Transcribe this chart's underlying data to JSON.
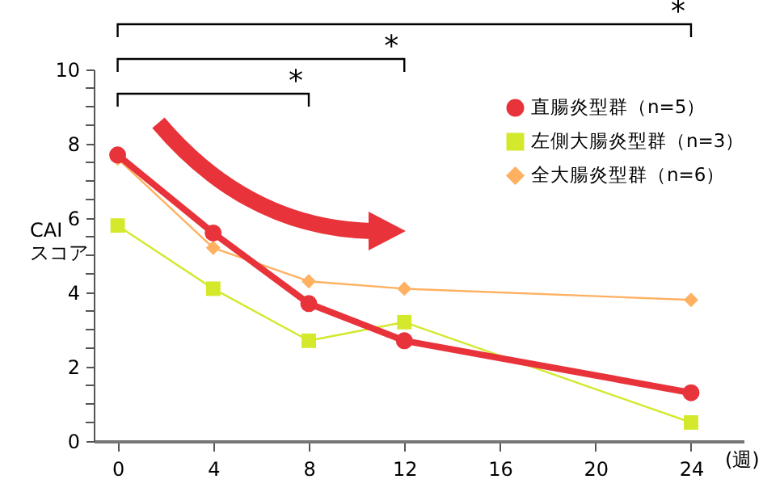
{
  "chart_data": {
    "type": "line",
    "ylabel": "CAI\nスコア",
    "xlabel": "(週)",
    "xlim": [
      -1,
      26.2
    ],
    "xticks": [
      0,
      4,
      8,
      12,
      16,
      20,
      24
    ],
    "ylim": [
      0,
      10
    ],
    "yticks": [
      0,
      {
        "value": 0.5,
        "label": null
      },
      {
        "value": 1,
        "label": null
      },
      {
        "value": 1.5,
        "label": null
      },
      2,
      {
        "value": 2.5,
        "label": null
      },
      {
        "value": 3,
        "label": null
      },
      {
        "value": 3.5,
        "label": null
      },
      4,
      {
        "value": 4.5,
        "label": null
      },
      {
        "value": 5,
        "label": null
      },
      {
        "value": 5.5,
        "label": null
      },
      6,
      {
        "value": 6.5,
        "label": null
      },
      {
        "value": 7,
        "label": null
      },
      {
        "value": 7.5,
        "label": null
      },
      8,
      {
        "value": 8.5,
        "label": null
      },
      {
        "value": 9,
        "label": null
      },
      {
        "value": 9.5,
        "label": null
      },
      10
    ],
    "x": [
      0,
      4,
      8,
      12,
      24
    ],
    "series": [
      {
        "name": "全大腸炎型群（n=6）",
        "color": "#ffb060",
        "marker": "diamond",
        "values": [
          7.6,
          5.2,
          4.3,
          4.1,
          3.8
        ]
      },
      {
        "name": "左側大腸炎型群（n=3）",
        "color": "#d4e82c",
        "marker": "square",
        "values": [
          5.8,
          4.1,
          2.7,
          3.2,
          0.5
        ]
      },
      {
        "name": "直腸炎型群（n=5）",
        "color": "#e8333a",
        "marker": "circle",
        "values": [
          7.7,
          5.6,
          3.7,
          2.7,
          1.3
        ]
      }
    ],
    "annotations": [
      "*",
      "*",
      "*"
    ],
    "legend": "top right",
    "grid": false
  }
}
